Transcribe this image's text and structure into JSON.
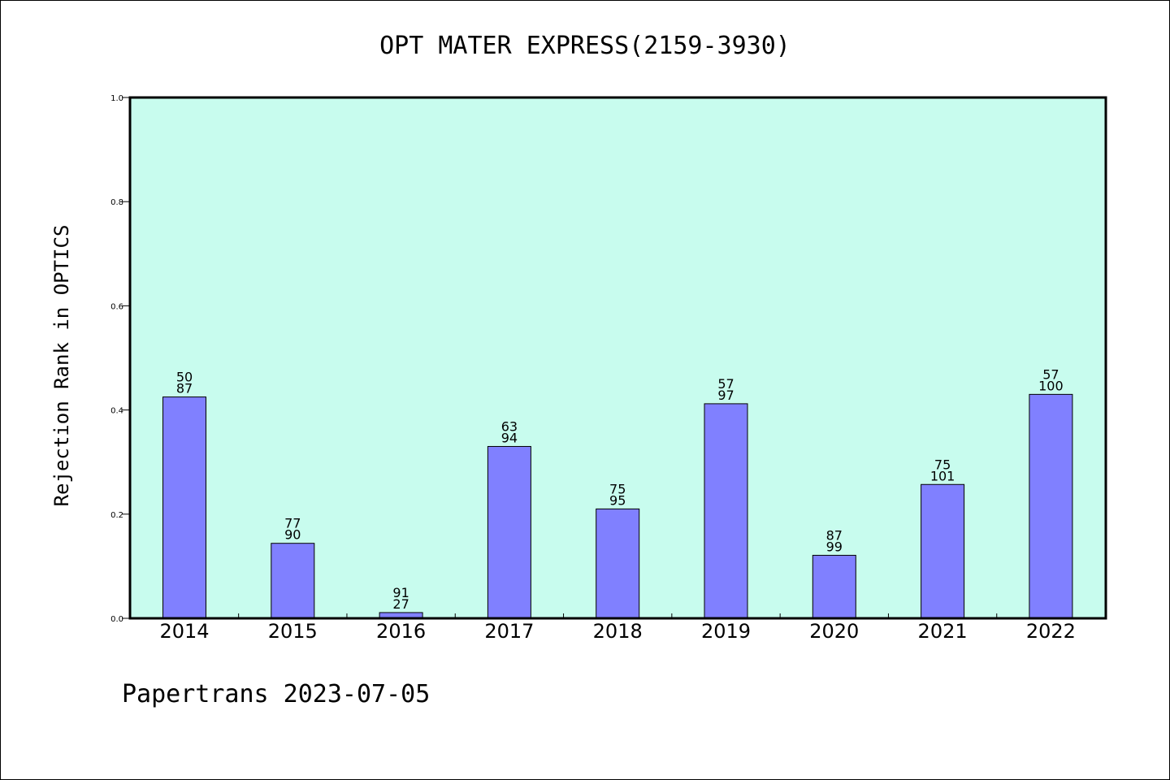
{
  "chart_data": {
    "type": "bar",
    "title": "OPT MATER EXPRESS(2159-3930)",
    "xlabel": "",
    "ylabel": "Rejection Rank in OPTICS",
    "ylim": [
      0,
      1.0
    ],
    "yticks": [
      "0.0",
      "0.2",
      "0.4",
      "0.6",
      "0.8",
      "1.0"
    ],
    "categories": [
      "2014",
      "2015",
      "2016",
      "2017",
      "2018",
      "2019",
      "2020",
      "2021",
      "2022"
    ],
    "values": [
      0.425,
      0.144,
      0.011,
      0.33,
      0.21,
      0.412,
      0.121,
      0.257,
      0.43
    ],
    "labels_top": [
      "50",
      "77",
      "91",
      "63",
      "75",
      "57",
      "87",
      "75",
      "57"
    ],
    "labels_bottom": [
      "87",
      "90",
      "27",
      "94",
      "95",
      "97",
      "99",
      "101",
      "100"
    ],
    "grid": false,
    "colors": {
      "plot_background": "#c8fcee",
      "bar_fill": "#8080ff",
      "bar_edge": "#000000"
    }
  },
  "footer": "Papertrans 2023-07-05"
}
